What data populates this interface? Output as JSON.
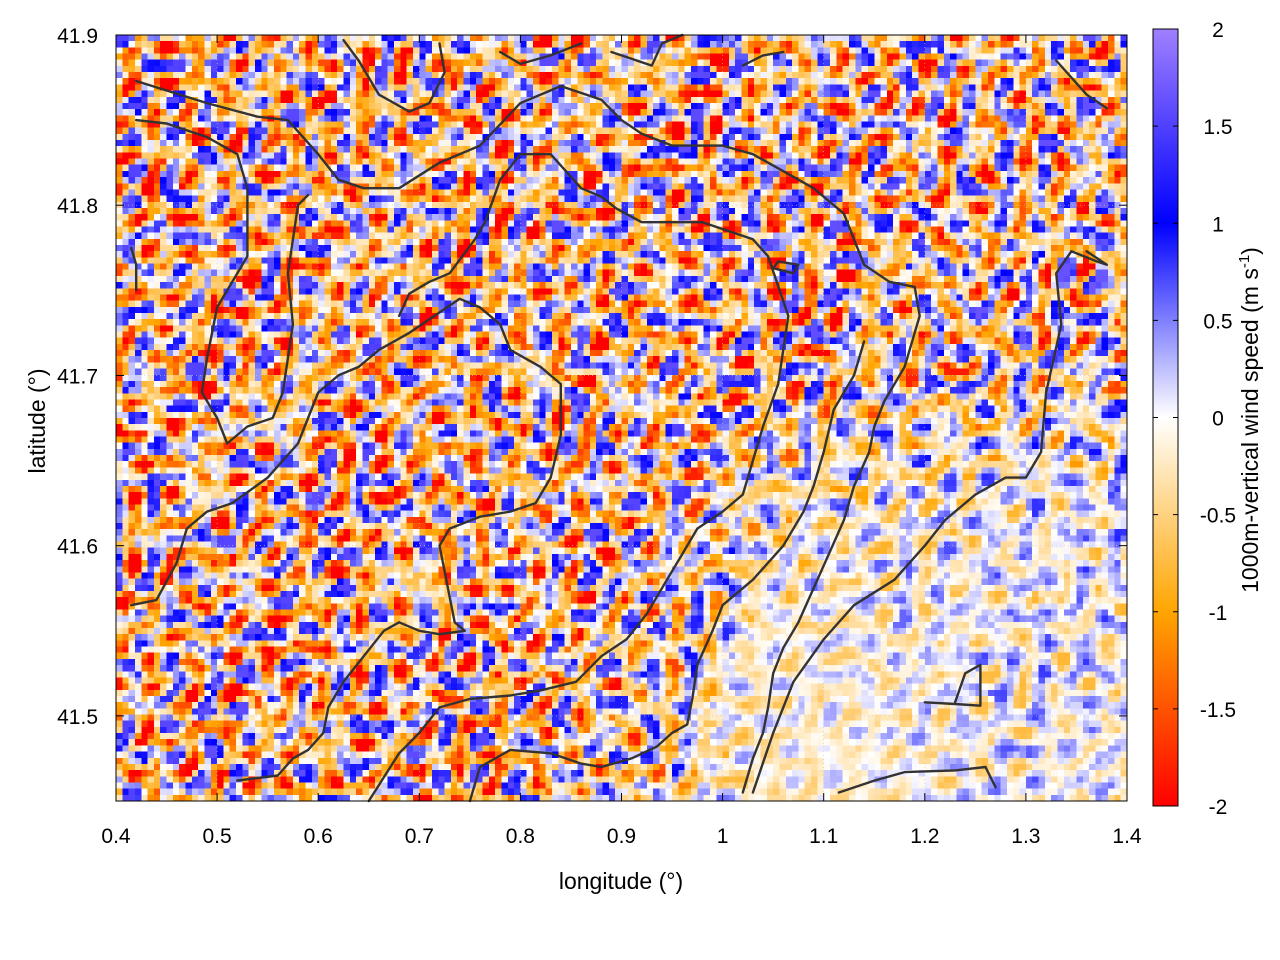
{
  "chart_data": {
    "type": "heatmap",
    "title": "",
    "xlabel": "longitude (°)",
    "ylabel": "latitude (°)",
    "colorbar_label": "1000m-vertical wind speed (m s-1)",
    "colorbar_label_parts": {
      "main": "1000m-vertical wind speed (m s",
      "exp": "-1",
      "close": ")"
    },
    "xlim": [
      0.4,
      1.4
    ],
    "ylim": [
      41.45,
      41.9
    ],
    "zlim": [
      -2,
      2
    ],
    "x_ticks": [
      0.4,
      0.5,
      0.6,
      0.7,
      0.8,
      0.9,
      1.0,
      1.1,
      1.2,
      1.3,
      1.4
    ],
    "x_tick_labels": [
      "0.4",
      "0.5",
      "0.6",
      "0.7",
      "0.8",
      "0.9",
      "1",
      "1.1",
      "1.2",
      "1.3",
      "1.4"
    ],
    "y_ticks": [
      41.5,
      41.6,
      41.7,
      41.8,
      41.9
    ],
    "y_tick_labels": [
      "41.5",
      "41.6",
      "41.7",
      "41.8",
      "41.9"
    ],
    "colorbar_ticks": [
      2,
      1.5,
      1,
      0.5,
      0,
      -0.5,
      -1,
      -1.5,
      -2
    ],
    "colorbar_tick_labels": [
      "2",
      "1.5",
      "1",
      "0.5",
      "0",
      "-0.5",
      "-1",
      "-1.5",
      "-2"
    ],
    "colormap": [
      {
        "value": -2,
        "color": "#ff0000"
      },
      {
        "value": -1,
        "color": "#ffa500"
      },
      {
        "value": 0,
        "color": "#ffffff"
      },
      {
        "value": 1,
        "color": "#0000ff"
      },
      {
        "value": 2,
        "color": "#a080ff"
      }
    ],
    "field_description_grid": {
      "cols": 12,
      "rows": 6,
      "note": "approximate mean and amplitude of the vertical wind field per region (rows top->bottom, lon 0.4->1.4)",
      "mean": [
        [
          -0.4,
          -0.4,
          -0.3,
          -0.4,
          -0.4,
          -0.3,
          -0.4,
          -0.3,
          -0.3,
          -0.4,
          -0.3,
          -0.3
        ],
        [
          -0.4,
          -0.3,
          -0.4,
          -0.3,
          -0.4,
          -0.3,
          -0.3,
          -0.2,
          -0.3,
          -0.3,
          -0.3,
          -0.2
        ],
        [
          -0.3,
          -0.4,
          -0.3,
          -0.4,
          -0.3,
          -0.3,
          -0.3,
          -0.3,
          -0.3,
          -0.2,
          -0.2,
          -0.1
        ],
        [
          -0.3,
          -0.4,
          -0.3,
          -0.4,
          -0.4,
          -0.3,
          -0.2,
          -0.2,
          -0.1,
          -0.1,
          0.0,
          0.0
        ],
        [
          -0.4,
          -0.3,
          -0.4,
          -0.3,
          -0.3,
          -0.3,
          -0.1,
          -0.1,
          -0.1,
          0.0,
          0.0,
          0.0
        ],
        [
          -0.4,
          -0.3,
          -0.3,
          -0.3,
          -0.4,
          -0.3,
          -0.2,
          -0.2,
          -0.1,
          -0.1,
          0.0,
          0.0
        ]
      ],
      "amplitude": [
        [
          1.9,
          1.9,
          1.9,
          1.9,
          1.9,
          1.9,
          1.9,
          1.9,
          1.9,
          1.9,
          1.9,
          1.9
        ],
        [
          1.9,
          1.9,
          1.9,
          1.9,
          1.9,
          1.9,
          1.9,
          1.9,
          1.9,
          1.9,
          1.9,
          1.9
        ],
        [
          1.9,
          1.9,
          1.9,
          1.9,
          1.9,
          1.9,
          1.9,
          1.9,
          1.9,
          1.9,
          1.8,
          1.8
        ],
        [
          1.9,
          1.9,
          1.9,
          1.9,
          1.9,
          1.9,
          1.7,
          1.2,
          0.9,
          0.8,
          0.8,
          0.9
        ],
        [
          1.9,
          1.9,
          1.9,
          1.9,
          1.9,
          1.9,
          1.6,
          0.6,
          0.5,
          0.7,
          0.8,
          0.8
        ],
        [
          1.9,
          1.9,
          1.9,
          1.9,
          1.9,
          1.9,
          1.4,
          0.4,
          0.4,
          0.6,
          0.7,
          0.7
        ]
      ]
    },
    "terrain_contours": [
      [
        [
          0.42,
          41.873
        ],
        [
          0.49,
          41.86
        ],
        [
          0.54,
          41.852
        ],
        [
          0.57,
          41.85
        ],
        [
          0.6,
          41.83
        ],
        [
          0.62,
          41.815
        ],
        [
          0.645,
          41.81
        ],
        [
          0.68,
          41.81
        ],
        [
          0.72,
          41.825
        ],
        [
          0.76,
          41.835
        ],
        [
          0.8,
          41.86
        ],
        [
          0.84,
          41.87
        ],
        [
          0.88,
          41.862
        ],
        [
          0.9,
          41.85
        ],
        [
          0.92,
          41.842
        ],
        [
          0.95,
          41.835
        ],
        [
          1.0,
          41.835
        ],
        [
          1.03,
          41.83
        ],
        [
          1.06,
          41.82
        ],
        [
          1.09,
          41.81
        ],
        [
          1.12,
          41.795
        ],
        [
          1.14,
          41.765
        ],
        [
          1.165,
          41.755
        ],
        [
          1.19,
          41.752
        ],
        [
          1.195,
          41.735
        ],
        [
          1.18,
          41.705
        ],
        [
          1.16,
          41.685
        ],
        [
          1.15,
          41.67
        ],
        [
          1.145,
          41.655
        ],
        [
          1.13,
          41.635
        ],
        [
          1.12,
          41.615
        ],
        [
          1.105,
          41.595
        ],
        [
          1.09,
          41.575
        ],
        [
          1.075,
          41.555
        ],
        [
          1.06,
          41.54
        ],
        [
          1.05,
          41.525
        ],
        [
          1.045,
          41.505
        ],
        [
          1.04,
          41.49
        ],
        [
          1.03,
          41.475
        ],
        [
          1.02,
          41.455
        ]
      ],
      [
        [
          0.42,
          41.85
        ],
        [
          0.45,
          41.848
        ],
        [
          0.49,
          41.84
        ],
        [
          0.52,
          41.83
        ],
        [
          0.53,
          41.81
        ],
        [
          0.53,
          41.77
        ],
        [
          0.5,
          41.74
        ],
        [
          0.49,
          41.71
        ],
        [
          0.485,
          41.69
        ],
        [
          0.5,
          41.675
        ],
        [
          0.51,
          41.66
        ],
        [
          0.53,
          41.67
        ],
        [
          0.555,
          41.675
        ],
        [
          0.565,
          41.69
        ],
        [
          0.575,
          41.73
        ],
        [
          0.57,
          41.76
        ],
        [
          0.58,
          41.8
        ],
        [
          0.59,
          41.806
        ]
      ],
      [
        [
          0.415,
          41.565
        ],
        [
          0.44,
          41.568
        ],
        [
          0.46,
          41.59
        ],
        [
          0.47,
          41.61
        ],
        [
          0.49,
          41.62
        ],
        [
          0.515,
          41.625
        ],
        [
          0.55,
          41.64
        ],
        [
          0.58,
          41.66
        ],
        [
          0.6,
          41.69
        ],
        [
          0.62,
          41.7
        ],
        [
          0.64,
          41.705
        ],
        [
          0.66,
          41.715
        ],
        [
          0.69,
          41.725
        ],
        [
          0.715,
          41.735
        ],
        [
          0.74,
          41.745
        ],
        [
          0.76,
          41.74
        ],
        [
          0.78,
          41.73
        ],
        [
          0.79,
          41.715
        ],
        [
          0.82,
          41.705
        ],
        [
          0.84,
          41.695
        ],
        [
          0.84,
          41.665
        ],
        [
          0.83,
          41.64
        ],
        [
          0.815,
          41.625
        ],
        [
          0.79,
          41.62
        ],
        [
          0.76,
          41.617
        ],
        [
          0.73,
          41.61
        ],
        [
          0.72,
          41.6
        ],
        [
          0.725,
          41.585
        ],
        [
          0.73,
          41.57
        ],
        [
          0.735,
          41.555
        ],
        [
          0.745,
          41.55
        ],
        [
          0.72,
          41.548
        ],
        [
          0.7,
          41.55
        ],
        [
          0.68,
          41.555
        ],
        [
          0.665,
          41.55
        ],
        [
          0.645,
          41.535
        ],
        [
          0.625,
          41.52
        ],
        [
          0.61,
          41.505
        ],
        [
          0.605,
          41.49
        ],
        [
          0.59,
          41.48
        ],
        [
          0.575,
          41.475
        ],
        [
          0.56,
          41.465
        ],
        [
          0.52,
          41.462
        ]
      ],
      [
        [
          0.65,
          41.45
        ],
        [
          0.68,
          41.478
        ],
        [
          0.7,
          41.49
        ],
        [
          0.72,
          41.505
        ],
        [
          0.75,
          41.51
        ],
        [
          0.79,
          41.512
        ],
        [
          0.82,
          41.515
        ],
        [
          0.855,
          41.52
        ],
        [
          0.88,
          41.535
        ],
        [
          0.905,
          41.545
        ],
        [
          0.925,
          41.56
        ],
        [
          0.945,
          41.58
        ],
        [
          0.96,
          41.595
        ],
        [
          0.975,
          41.61
        ],
        [
          1.0,
          41.62
        ],
        [
          1.02,
          41.63
        ],
        [
          1.04,
          41.67
        ],
        [
          1.055,
          41.695
        ],
        [
          1.065,
          41.735
        ],
        [
          1.045,
          41.77
        ],
        [
          1.03,
          41.78
        ],
        [
          1.005,
          41.785
        ],
        [
          0.98,
          41.79
        ],
        [
          0.96,
          41.79
        ],
        [
          0.94,
          41.79
        ],
        [
          0.92,
          41.79
        ],
        [
          0.895,
          41.798
        ],
        [
          0.88,
          41.805
        ],
        [
          0.86,
          41.81
        ],
        [
          0.83,
          41.83
        ],
        [
          0.8,
          41.83
        ],
        [
          0.78,
          41.815
        ],
        [
          0.765,
          41.79
        ],
        [
          0.755,
          41.78
        ],
        [
          0.73,
          41.76
        ],
        [
          0.71,
          41.755
        ],
        [
          0.69,
          41.748
        ],
        [
          0.68,
          41.735
        ]
      ],
      [
        [
          0.75,
          41.45
        ],
        [
          0.76,
          41.47
        ],
        [
          0.79,
          41.48
        ],
        [
          0.83,
          41.478
        ],
        [
          0.86,
          41.472
        ],
        [
          0.88,
          41.47
        ],
        [
          0.91,
          41.475
        ],
        [
          0.935,
          41.482
        ],
        [
          0.95,
          41.49
        ],
        [
          0.965,
          41.495
        ],
        [
          0.97,
          41.51
        ],
        [
          0.975,
          41.53
        ],
        [
          0.99,
          41.55
        ],
        [
          1.0,
          41.565
        ],
        [
          1.03,
          41.58
        ],
        [
          1.06,
          41.6
        ],
        [
          1.08,
          41.62
        ],
        [
          1.09,
          41.635
        ],
        [
          1.1,
          41.655
        ],
        [
          1.11,
          41.68
        ],
        [
          1.13,
          41.7
        ],
        [
          1.14,
          41.72
        ]
      ],
      [
        [
          1.115,
          41.455
        ],
        [
          1.15,
          41.462
        ],
        [
          1.18,
          41.467
        ],
        [
          1.23,
          41.468
        ],
        [
          1.26,
          41.47
        ],
        [
          1.27,
          41.458
        ]
      ],
      [
        [
          1.2,
          41.508
        ],
        [
          1.23,
          41.507
        ],
        [
          1.255,
          41.506
        ],
        [
          1.255,
          41.53
        ],
        [
          1.24,
          41.525
        ],
        [
          1.23,
          41.508
        ]
      ],
      [
        [
          1.03,
          41.455
        ],
        [
          1.05,
          41.49
        ],
        [
          1.07,
          41.52
        ],
        [
          1.1,
          41.545
        ],
        [
          1.13,
          41.565
        ],
        [
          1.17,
          41.58
        ],
        [
          1.2,
          41.6
        ],
        [
          1.22,
          41.615
        ],
        [
          1.25,
          41.63
        ],
        [
          1.28,
          41.64
        ],
        [
          1.3,
          41.64
        ],
        [
          1.315,
          41.655
        ],
        [
          1.32,
          41.69
        ],
        [
          1.335,
          41.73
        ],
        [
          1.33,
          41.76
        ],
        [
          1.345,
          41.773
        ],
        [
          1.37,
          41.767
        ],
        [
          1.38,
          41.765
        ],
        [
          1.36,
          41.773
        ]
      ],
      [
        [
          0.72,
          41.895
        ],
        [
          0.725,
          41.878
        ],
        [
          0.71,
          41.86
        ],
        [
          0.69,
          41.855
        ],
        [
          0.66,
          41.865
        ],
        [
          0.64,
          41.885
        ],
        [
          0.625,
          41.897
        ]
      ],
      [
        [
          0.78,
          41.89
        ],
        [
          0.8,
          41.883
        ],
        [
          0.83,
          41.888
        ],
        [
          0.86,
          41.895
        ]
      ],
      [
        [
          0.89,
          41.89
        ],
        [
          0.91,
          41.886
        ],
        [
          0.93,
          41.882
        ],
        [
          0.94,
          41.895
        ],
        [
          0.96,
          41.9
        ]
      ],
      [
        [
          1.02,
          41.882
        ],
        [
          1.04,
          41.888
        ],
        [
          1.06,
          41.89
        ]
      ],
      [
        [
          1.33,
          41.885
        ],
        [
          1.345,
          41.875
        ],
        [
          1.36,
          41.865
        ],
        [
          1.38,
          41.857
        ]
      ],
      [
        [
          0.415,
          41.775
        ],
        [
          0.42,
          41.765
        ],
        [
          0.42,
          41.75
        ]
      ],
      [
        [
          1.05,
          41.763
        ],
        [
          1.07,
          41.76
        ],
        [
          1.075,
          41.765
        ],
        [
          1.055,
          41.767
        ],
        [
          1.05,
          41.763
        ]
      ]
    ]
  }
}
